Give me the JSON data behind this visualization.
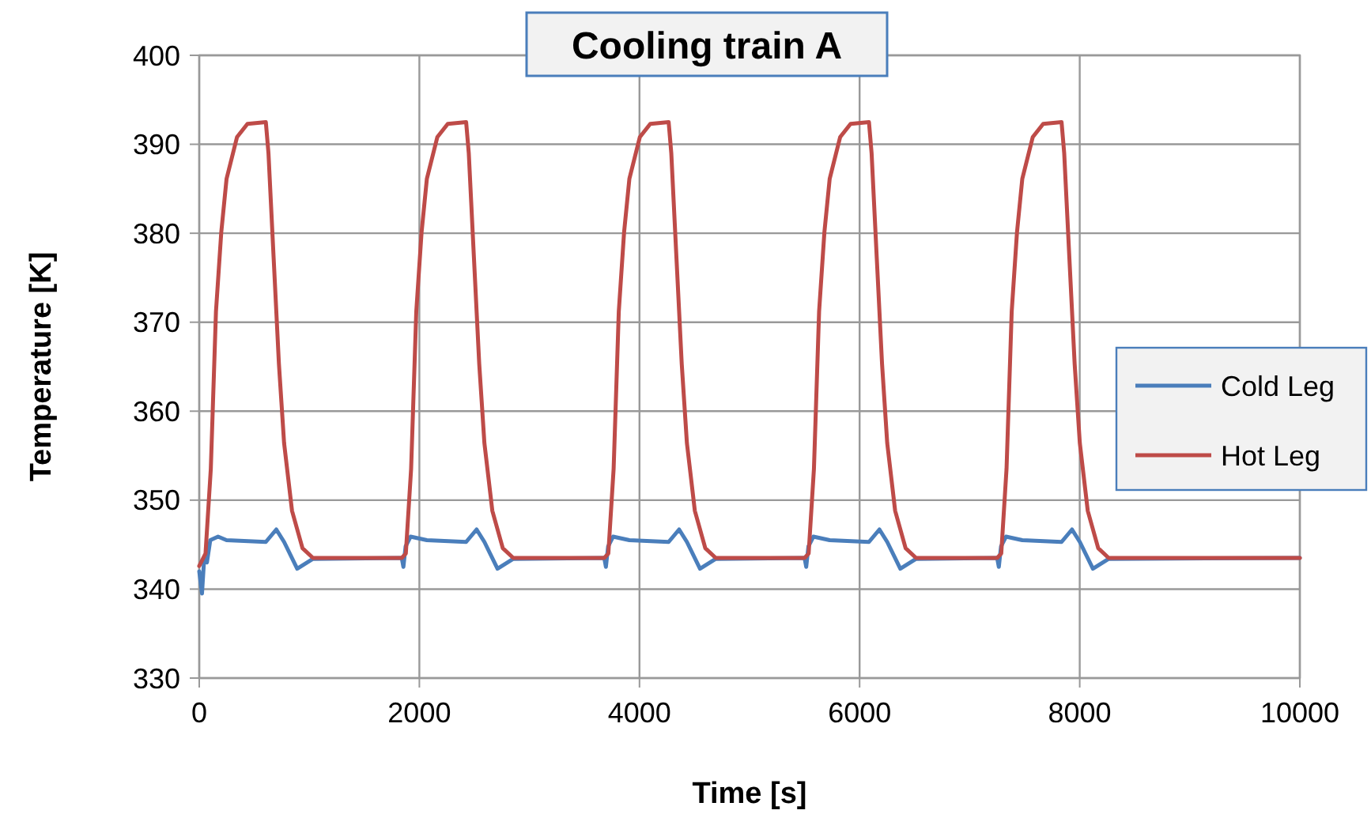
{
  "chart_data": {
    "type": "line",
    "title": "Cooling train A",
    "xlabel": "Time [s]",
    "ylabel": "Temperature [K]",
    "xlim": [
      0,
      10000
    ],
    "xticks": [
      0,
      2000,
      4000,
      6000,
      8000,
      10000
    ],
    "ylim": [
      330,
      400
    ],
    "yticks": [
      330,
      340,
      350,
      360,
      370,
      380,
      390,
      400
    ],
    "grid": true,
    "legend": "right",
    "series": [
      {
        "name": "Cold Leg",
        "color": "#4a7ebb",
        "x": [
          0,
          25,
          45,
          70,
          100,
          171,
          248,
          605,
          700,
          771,
          890,
          1033,
          1840,
          1855,
          1875,
          1920,
          2068,
          2425,
          2520,
          2591,
          2710,
          2853,
          3680,
          3695,
          3715,
          3760,
          3908,
          4265,
          4360,
          4431,
          4550,
          4693,
          5500,
          5515,
          5535,
          5580,
          5728,
          6085,
          6180,
          6251,
          6370,
          6513,
          7250,
          7265,
          7285,
          7330,
          7478,
          7835,
          7930,
          8001,
          8120,
          8263,
          10000
        ],
        "values": [
          342.0,
          339.5,
          343.5,
          343.0,
          345.5,
          345.9,
          345.5,
          345.3,
          346.7,
          345.3,
          342.3,
          343.4,
          343.5,
          342.5,
          344.8,
          345.9,
          345.5,
          345.3,
          346.7,
          345.3,
          342.3,
          343.4,
          343.5,
          342.5,
          344.8,
          345.9,
          345.5,
          345.3,
          346.7,
          345.3,
          342.3,
          343.4,
          343.5,
          342.5,
          344.8,
          345.9,
          345.5,
          345.3,
          346.7,
          345.3,
          342.3,
          343.4,
          343.5,
          342.5,
          344.8,
          345.9,
          345.5,
          345.3,
          346.7,
          345.3,
          342.3,
          343.4,
          343.5
        ]
      },
      {
        "name": "Hot Leg",
        "color": "#be4b48",
        "x": [
          0,
          57,
          105,
          152,
          200,
          248,
          343,
          438,
          605,
          629,
          676,
          724,
          771,
          843,
          938,
          1033,
          1840,
          1877,
          1925,
          1972,
          2020,
          2068,
          2163,
          2258,
          2425,
          2449,
          2496,
          2544,
          2591,
          2663,
          2758,
          2853,
          3680,
          3717,
          3765,
          3812,
          3860,
          3908,
          4003,
          4098,
          4265,
          4289,
          4336,
          4384,
          4431,
          4503,
          4598,
          4693,
          5500,
          5537,
          5585,
          5632,
          5680,
          5728,
          5823,
          5918,
          6085,
          6109,
          6156,
          6204,
          6251,
          6323,
          6418,
          6513,
          7250,
          7287,
          7335,
          7382,
          7430,
          7478,
          7573,
          7668,
          7835,
          7859,
          7906,
          7954,
          8001,
          8073,
          8168,
          8263,
          10000
        ],
        "values": [
          342.6,
          344.0,
          353.5,
          371.2,
          380.1,
          386.1,
          390.8,
          392.3,
          392.5,
          389.0,
          377.2,
          365.3,
          356.4,
          348.8,
          344.6,
          343.5,
          343.5,
          344.0,
          353.5,
          371.2,
          380.1,
          386.1,
          390.8,
          392.3,
          392.5,
          389.0,
          377.2,
          365.3,
          356.4,
          348.8,
          344.6,
          343.5,
          343.5,
          344.0,
          353.5,
          371.2,
          380.1,
          386.1,
          390.8,
          392.3,
          392.5,
          389.0,
          377.2,
          365.3,
          356.4,
          348.8,
          344.6,
          343.5,
          343.5,
          344.0,
          353.5,
          371.2,
          380.1,
          386.1,
          390.8,
          392.3,
          392.5,
          389.0,
          377.2,
          365.3,
          356.4,
          348.8,
          344.6,
          343.5,
          343.5,
          344.0,
          353.5,
          371.2,
          380.1,
          386.1,
          390.8,
          392.3,
          392.5,
          389.0,
          377.2,
          365.3,
          356.4,
          348.8,
          344.6,
          343.5,
          343.5
        ]
      }
    ]
  }
}
